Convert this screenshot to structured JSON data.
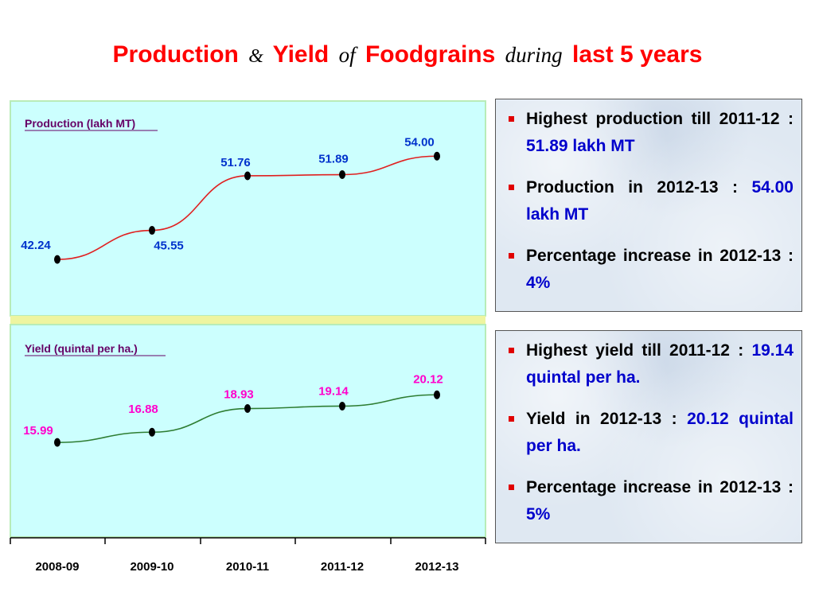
{
  "slide": {
    "title_parts": {
      "part1": "Production",
      "amp": "&",
      "part2": "Yield",
      "of": "of",
      "part3": "Foodgrains",
      "during": "during",
      "part4": "last 5 years"
    }
  },
  "colors": {
    "title": "#ff0000",
    "panel_bg": "#ccfffe",
    "panel_border": "#b8ecb8",
    "separator": "#eef5a0",
    "production_line": "#e02020",
    "production_labels": "#0033cc",
    "yield_line": "#2e7d32",
    "yield_labels": "#ff00cc",
    "chart_title_text": "#660066",
    "bullet": "#e00000",
    "highlight": "#0000cc"
  },
  "chart_data": [
    {
      "type": "line",
      "title": "Production (lakh MT)",
      "categories": [
        "2008-09",
        "2009-10",
        "2010-11",
        "2011-12",
        "2012-13"
      ],
      "values": [
        42.24,
        45.55,
        51.76,
        51.89,
        54.0
      ],
      "labels": [
        "42.24",
        "45.55",
        "51.76",
        "51.89",
        "54.00"
      ],
      "ylim": [
        36,
        60
      ],
      "grid": false
    },
    {
      "type": "line",
      "title": "Yield (quintal per ha.)",
      "categories": [
        "2008-09",
        "2009-10",
        "2010-11",
        "2011-12",
        "2012-13"
      ],
      "values": [
        15.99,
        16.88,
        18.93,
        19.14,
        20.12
      ],
      "labels": [
        "15.99",
        "16.88",
        "18.93",
        "19.14",
        "20.12"
      ],
      "ylim": [
        8,
        26
      ],
      "grid": false
    }
  ],
  "info_boxes": {
    "production": [
      {
        "text": "Highest production till 2011-12 : ",
        "highlight": "51.89 lakh MT"
      },
      {
        "text": "Production in 2012-13 : ",
        "highlight": "54.00 lakh MT"
      },
      {
        "text": "Percentage increase in 2012-13 : ",
        "highlight": "4%"
      }
    ],
    "yield": [
      {
        "text": "Highest yield till 2011-12 : ",
        "highlight": "19.14 quintal per ha."
      },
      {
        "text": "Yield in 2012-13 : ",
        "highlight": "20.12 quintal per ha."
      },
      {
        "text": "Percentage increase in 2012-13 : ",
        "highlight": "5%"
      }
    ]
  }
}
